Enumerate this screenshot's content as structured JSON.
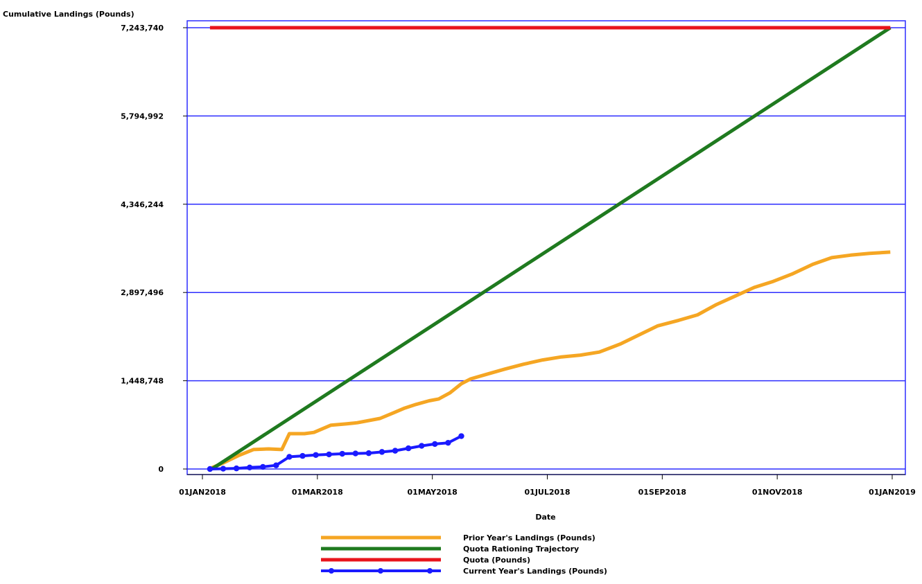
{
  "chart_data": {
    "type": "line",
    "ylabel": "Cumulative Landings (Pounds)",
    "xlabel": "Date",
    "x_ticks": [
      "01JAN2018",
      "01MAR2018",
      "01MAY2018",
      "01JUL2018",
      "01SEP2018",
      "01NOV2018",
      "01JAN2019"
    ],
    "y_ticks": [
      "0",
      "1,448,748",
      "2,897,496",
      "4,346,244",
      "5,794,992",
      "7,243,740"
    ],
    "xlim": [
      "2018-01-01",
      "2019-01-01"
    ],
    "ylim": [
      0,
      7243740
    ],
    "grid": "horizontal",
    "legend_position": "bottom",
    "colors": {
      "prior": "#f5a623",
      "trajectory": "#1f7a1f",
      "quota": "#e8141c",
      "current": "#1a1aff",
      "grid": "#2b2bff"
    },
    "series": [
      {
        "key": "prior",
        "name": "Prior Year's Landings (Pounds)",
        "x": [
          "2018-01-06",
          "2018-01-12",
          "2018-01-20",
          "2018-01-28",
          "2018-02-05",
          "2018-02-12",
          "2018-02-16",
          "2018-02-24",
          "2018-03-01",
          "2018-03-10",
          "2018-03-18",
          "2018-03-24",
          "2018-04-05",
          "2018-04-12",
          "2018-04-18",
          "2018-04-24",
          "2018-05-01",
          "2018-05-06",
          "2018-05-12",
          "2018-05-18",
          "2018-05-23",
          "2018-06-01",
          "2018-06-10",
          "2018-06-20",
          "2018-06-30",
          "2018-07-10",
          "2018-07-20",
          "2018-07-30",
          "2018-08-10",
          "2018-08-20",
          "2018-08-30",
          "2018-09-10",
          "2018-09-20",
          "2018-09-30",
          "2018-10-10",
          "2018-10-20",
          "2018-10-30",
          "2018-11-09",
          "2018-11-20",
          "2018-11-30",
          "2018-12-10",
          "2018-12-20",
          "2018-12-31"
        ],
        "values": [
          20000,
          100000,
          220000,
          320000,
          330000,
          320000,
          580000,
          580000,
          600000,
          720000,
          740000,
          760000,
          830000,
          920000,
          1000000,
          1060000,
          1120000,
          1150000,
          1250000,
          1400000,
          1480000,
          1560000,
          1640000,
          1720000,
          1790000,
          1840000,
          1870000,
          1920000,
          2050000,
          2200000,
          2350000,
          2440000,
          2530000,
          2700000,
          2840000,
          2980000,
          3080000,
          3200000,
          3360000,
          3470000,
          3510000,
          3540000,
          3560000
        ]
      },
      {
        "key": "trajectory",
        "name": "Quota Rationing Trajectory",
        "x": [
          "2018-01-06",
          "2018-12-31"
        ],
        "values": [
          0,
          7243740
        ]
      },
      {
        "key": "quota",
        "name": "Quota (Pounds)",
        "x": [
          "2018-01-05",
          "2018-12-31"
        ],
        "values": [
          7243740,
          7243740
        ]
      },
      {
        "key": "current",
        "name": "Current Year's Landings (Pounds)",
        "x": [
          "2018-01-05",
          "2018-01-12",
          "2018-01-19",
          "2018-01-26",
          "2018-02-02",
          "2018-02-09",
          "2018-02-16",
          "2018-02-23",
          "2018-03-02",
          "2018-03-09",
          "2018-03-16",
          "2018-03-23",
          "2018-03-30",
          "2018-04-06",
          "2018-04-13",
          "2018-04-20",
          "2018-04-27",
          "2018-05-04",
          "2018-05-11",
          "2018-05-18"
        ],
        "values": [
          0,
          5000,
          10000,
          25000,
          35000,
          60000,
          200000,
          215000,
          230000,
          240000,
          250000,
          255000,
          260000,
          280000,
          300000,
          340000,
          380000,
          410000,
          430000,
          540000
        ]
      }
    ]
  }
}
